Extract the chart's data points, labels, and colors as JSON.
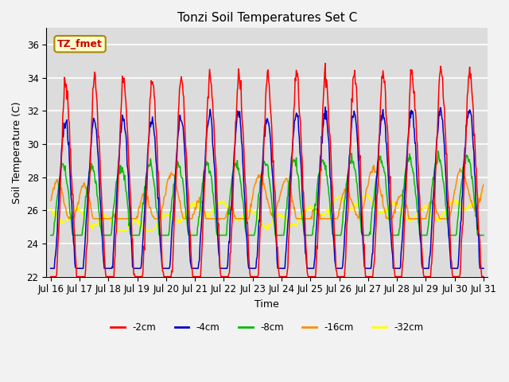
{
  "title": "Tonzi Soil Temperatures Set C",
  "xlabel": "Time",
  "ylabel": "Soil Temperature (C)",
  "ylim": [
    22,
    37
  ],
  "annotation_text": "TZ_fmet",
  "colors": {
    "-2cm": "#FF0000",
    "-4cm": "#0000CC",
    "-8cm": "#00BB00",
    "-16cm": "#FF8C00",
    "-32cm": "#FFFF00"
  },
  "legend_labels": [
    "-2cm",
    "-4cm",
    "-8cm",
    "-16cm",
    "-32cm"
  ],
  "x_tick_labels": [
    "Jul 16",
    "Jul 17",
    "Jul 18",
    "Jul 19",
    "Jul 20",
    "Jul 21",
    "Jul 22",
    "Jul 23",
    "Jul 24",
    "Jul 25",
    "Jul 26",
    "Jul 27",
    "Jul 28",
    "Jul 29",
    "Jul 30",
    "Jul 31"
  ],
  "days": 15,
  "background_color": "#DCDCDC",
  "grid_color": "#FFFFFF",
  "fig_facecolor": "#F2F2F2"
}
